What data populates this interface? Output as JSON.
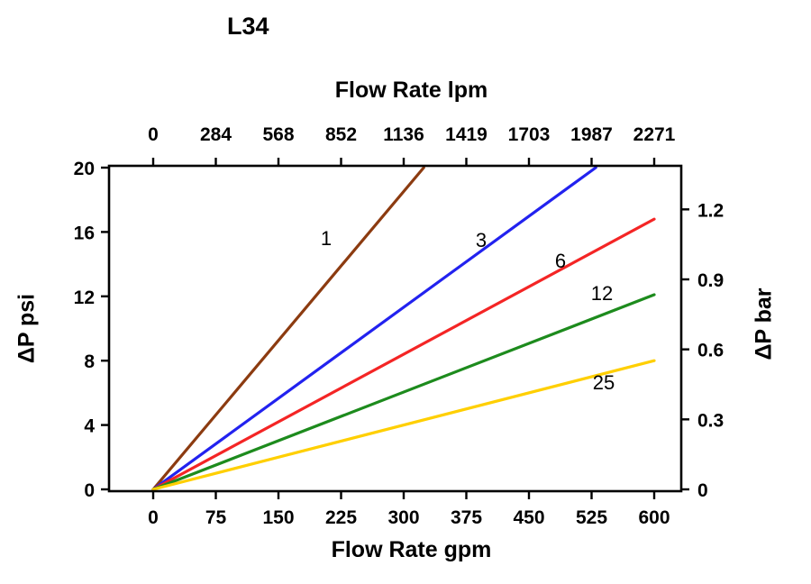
{
  "page": {
    "background": "#FFFFFF"
  },
  "chart_data": {
    "type": "line",
    "title": "L34",
    "top_axis": {
      "label": "Flow Rate lpm",
      "ticks": [
        "0",
        "284",
        "568",
        "852",
        "1136",
        "1419",
        "1703",
        "1987",
        "2271"
      ]
    },
    "bottom_axis": {
      "label": "Flow Rate gpm",
      "ticks": [
        "0",
        "75",
        "150",
        "225",
        "300",
        "375",
        "450",
        "525",
        "600"
      ],
      "range": [
        0,
        600
      ]
    },
    "left_axis": {
      "label": "ΔP psi",
      "ticks": [
        "0",
        "4",
        "8",
        "12",
        "16",
        "20"
      ],
      "range": [
        0,
        20
      ]
    },
    "right_axis": {
      "label": "ΔP bar",
      "ticks": [
        "0",
        "0.3",
        "0.6",
        "0.9",
        "1.2"
      ]
    },
    "grid": false,
    "legend": "labels-on-lines",
    "series": [
      {
        "name": "1",
        "color": "#8C3B10",
        "points_gpm_psi": [
          [
            0,
            0
          ],
          [
            324,
            20
          ]
        ]
      },
      {
        "name": "3",
        "color": "#2222EF",
        "points_gpm_psi": [
          [
            0,
            0
          ],
          [
            530,
            20
          ]
        ]
      },
      {
        "name": "6",
        "color": "#F42525",
        "points_gpm_psi": [
          [
            0,
            0
          ],
          [
            600,
            16.8
          ]
        ]
      },
      {
        "name": "12",
        "color": "#1D8B1D",
        "points_gpm_psi": [
          [
            0,
            0
          ],
          [
            600,
            12.1
          ]
        ]
      },
      {
        "name": "25",
        "color": "#FFCF00",
        "points_gpm_psi": [
          [
            0,
            0
          ],
          [
            600,
            8.0
          ]
        ]
      }
    ]
  }
}
